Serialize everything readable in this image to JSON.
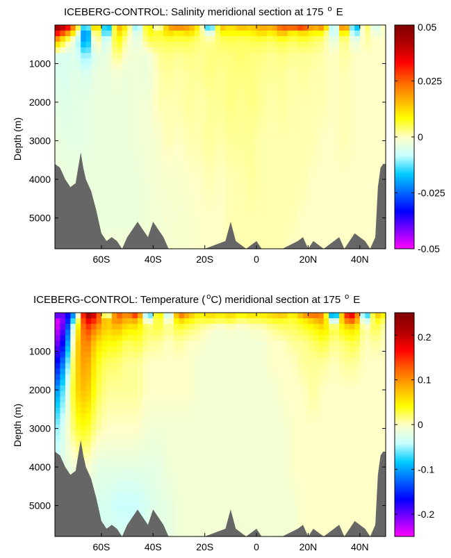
{
  "colors": {
    "land": "#666666",
    "colormap": [
      "#ff00ff",
      "#8000ff",
      "#0000ff",
      "#0066ff",
      "#00ccff",
      "#c8ffff",
      "#ffffc8",
      "#ffff00",
      "#ffb000",
      "#ff6000",
      "#ff0000",
      "#b00000",
      "#800000"
    ]
  },
  "chart_data": [
    {
      "type": "heatmap",
      "title": "ICEBERG-CONTROL: Salinity meridional section at 175",
      "title_sup": "o",
      "title_end": "E",
      "xlabel": "",
      "ylabel": "Depth (m)",
      "x_ticks": [
        "60S",
        "40S",
        "20S",
        "0",
        "20N",
        "40N"
      ],
      "x_tick_values": [
        -60,
        -40,
        -20,
        0,
        20,
        40
      ],
      "y_ticks": [
        "1000",
        "2000",
        "3000",
        "4000",
        "5000"
      ],
      "y_tick_values": [
        1000,
        2000,
        3000,
        4000,
        5000
      ],
      "xlim": [
        -78,
        50
      ],
      "ylim": [
        5800,
        0
      ],
      "y_reversed": true,
      "colorbar": {
        "labels": [
          "0.05",
          "0.025",
          "0",
          "-0.025",
          "-0.05"
        ],
        "values": [
          0.05,
          0.025,
          0,
          -0.025,
          -0.05
        ],
        "range": [
          -0.05,
          0.05
        ]
      },
      "field": {
        "lat": [
          -78,
          -74,
          -70,
          -66,
          -62,
          -58,
          -54,
          -50,
          -46,
          -42,
          -38,
          -34,
          -30,
          -26,
          -22,
          -18,
          -14,
          -10,
          -6,
          -2,
          2,
          6,
          10,
          14,
          18,
          22,
          26,
          30,
          34,
          38,
          42,
          46,
          50
        ],
        "depth": [
          0,
          150,
          400,
          800,
          1300,
          2000,
          3000,
          4000,
          5000,
          5800
        ],
        "values": [
          [
            0.05,
            0.045,
            0.02,
            -0.02,
            0.03,
            -0.03,
            0.02,
            0.01,
            -0.02,
            0.015,
            -0.01,
            0.02,
            0.03,
            0.02,
            0.01,
            -0.03,
            0.02,
            0.01,
            0.02,
            0.015,
            0.02,
            0.02,
            0.03,
            0.035,
            0.04,
            0.02,
            0.03,
            -0.02,
            0.04,
            -0.03,
            0.01,
            -0.01,
            0.005
          ],
          [
            0.04,
            0.03,
            0.01,
            -0.03,
            0.015,
            -0.025,
            0.015,
            0.005,
            -0.01,
            0.01,
            0.005,
            0.015,
            0.01,
            0.015,
            0.005,
            -0.01,
            0.01,
            0.01,
            0.01,
            0.01,
            0.015,
            0.01,
            0.02,
            0.01,
            0.015,
            0.01,
            0.01,
            -0.015,
            0.02,
            -0.02,
            0.005,
            -0.005,
            0.0
          ],
          [
            0.02,
            0.005,
            -0.005,
            -0.025,
            0.005,
            -0.01,
            0.01,
            0.0,
            -0.005,
            0.005,
            0.005,
            0.005,
            0.005,
            0.005,
            0.003,
            0.002,
            0.004,
            0.005,
            0.004,
            0.005,
            0.005,
            0.004,
            0.006,
            0.004,
            0.006,
            0.004,
            0.003,
            -0.005,
            0.005,
            -0.005,
            0.002,
            0.0,
            0.0
          ],
          [
            -0.005,
            -0.006,
            -0.005,
            -0.012,
            -0.004,
            -0.004,
            0.004,
            -0.002,
            -0.002,
            -0.003,
            0.002,
            0.003,
            0.002,
            0.003,
            0.002,
            0.003,
            0.003,
            0.003,
            0.004,
            0.003,
            0.003,
            0.002,
            0.003,
            0.002,
            0.002,
            0.002,
            0.001,
            0.0,
            0.002,
            0.0,
            0.0,
            0.0,
            0.0
          ],
          [
            -0.005,
            -0.006,
            -0.004,
            -0.006,
            -0.003,
            -0.003,
            -0.002,
            -0.003,
            -0.002,
            -0.003,
            0.001,
            0.002,
            0.001,
            0.002,
            0.002,
            0.003,
            0.002,
            0.003,
            0.003,
            0.003,
            0.002,
            0.002,
            0.002,
            0.001,
            0.002,
            0.001,
            0.001,
            0.0,
            0.001,
            0.0,
            0.0,
            0.0,
            0.0
          ],
          [
            -0.004,
            -0.005,
            -0.004,
            -0.004,
            -0.003,
            -0.003,
            -0.003,
            -0.003,
            -0.002,
            -0.002,
            0.001,
            0.001,
            0.001,
            0.002,
            0.001,
            0.002,
            0.002,
            0.003,
            0.002,
            0.003,
            0.002,
            0.001,
            0.002,
            0.001,
            0.001,
            0.001,
            0.001,
            0.0,
            0.001,
            0.0,
            0.0,
            0.0,
            0.0
          ],
          [
            -0.003,
            -0.004,
            -0.004,
            -0.004,
            -0.003,
            -0.003,
            -0.003,
            -0.003,
            -0.002,
            -0.002,
            -0.001,
            0.001,
            0.0,
            0.001,
            0.001,
            0.002,
            0.001,
            0.002,
            0.002,
            0.002,
            0.001,
            0.001,
            0.001,
            0.001,
            0.001,
            0.001,
            0.0,
            0.0,
            0.001,
            0.0,
            0.0,
            0.0,
            0.0
          ],
          [
            -0.003,
            -0.003,
            -0.003,
            -0.003,
            -0.003,
            -0.003,
            -0.003,
            -0.003,
            -0.003,
            -0.002,
            -0.001,
            -0.001,
            -0.001,
            0.0,
            0.0,
            0.001,
            0.0,
            0.001,
            0.001,
            0.002,
            0.001,
            0.001,
            0.001,
            0.001,
            0.001,
            0.0,
            0.0,
            0.0,
            0.0,
            0.0,
            0.0,
            0.0,
            0.0
          ],
          [
            -0.002,
            -0.002,
            -0.003,
            -0.003,
            -0.003,
            -0.003,
            -0.003,
            -0.003,
            -0.003,
            -0.002,
            -0.002,
            -0.001,
            -0.001,
            -0.001,
            0.0,
            0.0,
            0.0,
            0.001,
            0.001,
            0.001,
            0.001,
            0.001,
            0.001,
            0.001,
            0.0,
            0.0,
            0.0,
            0.0,
            0.0,
            0.0,
            0.0,
            0.0,
            0.0
          ],
          [
            -0.002,
            -0.002,
            -0.002,
            -0.002,
            -0.002,
            -0.002,
            -0.002,
            -0.002,
            -0.002,
            -0.002,
            -0.002,
            -0.001,
            -0.001,
            -0.001,
            0.0,
            0.0,
            0.0,
            0.001,
            0.001,
            0.001,
            0.001,
            0.001,
            0.001,
            0.0,
            0.0,
            0.0,
            0.0,
            0.0,
            0.0,
            0.0,
            0.0,
            0.0,
            0.0
          ]
        ]
      },
      "bathymetry": {
        "lat": [
          -78,
          -76,
          -74,
          -72,
          -70,
          -69,
          -68,
          -67,
          -66,
          -64,
          -62,
          -60,
          -58,
          -56,
          -54,
          -52,
          -50,
          -48,
          -46,
          -44,
          -42,
          -40,
          -38,
          -36,
          -34,
          -30,
          -20,
          -12,
          -10,
          -8,
          -4,
          0,
          2,
          6,
          10,
          16,
          18,
          20,
          22,
          26,
          30,
          32,
          34,
          38,
          42,
          44,
          46,
          47,
          48,
          49,
          50
        ],
        "depth": [
          3600,
          3700,
          4000,
          4200,
          4100,
          3700,
          3300,
          3700,
          4000,
          4300,
          4800,
          5400,
          5600,
          5500,
          5600,
          5800,
          5500,
          5300,
          5100,
          5300,
          5500,
          5100,
          5300,
          5500,
          5800,
          5800,
          5800,
          5600,
          5100,
          5600,
          5800,
          5600,
          5800,
          5800,
          5800,
          5600,
          5500,
          5800,
          5600,
          5800,
          5600,
          5500,
          5800,
          5400,
          5600,
          5800,
          5500,
          4200,
          3700,
          3600,
          3600
        ]
      }
    },
    {
      "type": "heatmap",
      "title": "ICEBERG-CONTROL: Temperature (",
      "title_sup_mid": "o",
      "title_mid": "C) meridional section at 175",
      "title_sup": "o",
      "title_end": "E",
      "xlabel": "",
      "ylabel": "Depth (m)",
      "x_ticks": [
        "60S",
        "40S",
        "20S",
        "0",
        "20N",
        "40N"
      ],
      "x_tick_values": [
        -60,
        -40,
        -20,
        0,
        20,
        40
      ],
      "y_ticks": [
        "1000",
        "2000",
        "3000",
        "4000",
        "5000"
      ],
      "y_tick_values": [
        1000,
        2000,
        3000,
        4000,
        5000
      ],
      "xlim": [
        -78,
        50
      ],
      "ylim": [
        5800,
        0
      ],
      "y_reversed": true,
      "colorbar": {
        "labels": [
          "0.2",
          "0.1",
          "0",
          "-0.1",
          "-0.2"
        ],
        "values": [
          0.2,
          0.1,
          0,
          -0.1,
          -0.2
        ],
        "range": [
          -0.25,
          0.25
        ]
      },
      "field": {
        "lat": [
          -78,
          -74,
          -70,
          -66,
          -62,
          -58,
          -54,
          -50,
          -46,
          -42,
          -38,
          -34,
          -30,
          -26,
          -22,
          -18,
          -14,
          -10,
          -6,
          -2,
          2,
          6,
          10,
          14,
          18,
          22,
          26,
          30,
          34,
          38,
          42,
          46,
          50
        ],
        "depth": [
          0,
          150,
          400,
          800,
          1300,
          2000,
          3000,
          4000,
          5000,
          5800
        ],
        "values": [
          [
            -0.15,
            -0.2,
            -0.1,
            0.25,
            0.2,
            -0.1,
            0.15,
            0.1,
            0.2,
            -0.15,
            0.1,
            -0.1,
            0.15,
            0.1,
            0.05,
            0.08,
            0.06,
            0.08,
            0.05,
            0.08,
            0.06,
            0.08,
            0.1,
            0.05,
            0.12,
            0.15,
            0.1,
            -0.2,
            0.15,
            0.2,
            -0.15,
            0.1,
            0.05
          ],
          [
            -0.25,
            -0.2,
            -0.05,
            0.2,
            0.15,
            0.05,
            0.12,
            0.08,
            0.1,
            -0.05,
            0.05,
            -0.03,
            0.08,
            0.05,
            0.03,
            0.04,
            0.03,
            0.04,
            0.02,
            0.03,
            0.03,
            0.04,
            0.04,
            0.03,
            0.05,
            0.08,
            0.1,
            -0.1,
            0.12,
            0.15,
            -0.08,
            0.05,
            0.02
          ],
          [
            -0.25,
            -0.18,
            0.02,
            0.15,
            0.1,
            0.06,
            0.08,
            0.05,
            0.05,
            0.02,
            0.03,
            0.01,
            0.03,
            0.02,
            0.01,
            0.0,
            -0.01,
            0.0,
            -0.01,
            0.0,
            0.0,
            0.01,
            0.02,
            0.02,
            0.03,
            0.04,
            0.06,
            0.02,
            0.05,
            0.06,
            0.0,
            0.03,
            0.0
          ],
          [
            -0.22,
            -0.15,
            0.05,
            0.12,
            0.06,
            0.04,
            0.04,
            0.02,
            0.03,
            0.01,
            0.01,
            0.0,
            0.01,
            0.0,
            0.0,
            -0.01,
            -0.01,
            -0.01,
            -0.01,
            -0.01,
            -0.01,
            0.0,
            0.0,
            0.01,
            0.01,
            0.02,
            0.03,
            0.01,
            0.02,
            0.03,
            0.0,
            0.01,
            0.0
          ],
          [
            -0.18,
            -0.1,
            0.06,
            0.1,
            0.04,
            0.02,
            0.02,
            0.01,
            0.01,
            0.0,
            0.0,
            0.0,
            0.0,
            0.0,
            -0.01,
            -0.01,
            -0.01,
            -0.01,
            -0.01,
            -0.01,
            -0.01,
            0.0,
            0.0,
            0.0,
            0.01,
            0.01,
            0.01,
            0.0,
            0.01,
            0.01,
            0.0,
            0.0,
            0.0
          ],
          [
            -0.12,
            -0.05,
            0.06,
            0.08,
            0.03,
            0.01,
            0.01,
            0.01,
            0.01,
            0.0,
            0.0,
            0.0,
            0.0,
            0.0,
            -0.01,
            -0.01,
            -0.01,
            -0.01,
            -0.01,
            -0.01,
            -0.01,
            -0.01,
            0.0,
            0.0,
            0.0,
            0.01,
            0.0,
            0.0,
            0.0,
            0.0,
            0.0,
            0.0,
            0.0
          ],
          [
            -0.06,
            -0.02,
            0.03,
            0.04,
            0.01,
            0.0,
            0.0,
            0.0,
            0.0,
            -0.01,
            -0.01,
            -0.01,
            -0.01,
            -0.01,
            -0.01,
            -0.01,
            -0.01,
            -0.01,
            -0.01,
            -0.01,
            -0.01,
            -0.01,
            -0.01,
            0.0,
            0.0,
            0.0,
            0.0,
            0.0,
            0.0,
            0.0,
            0.0,
            0.0,
            0.0
          ],
          [
            -0.03,
            -0.02,
            -0.01,
            0.0,
            -0.02,
            -0.02,
            -0.02,
            -0.02,
            -0.02,
            -0.02,
            -0.02,
            -0.01,
            -0.01,
            -0.01,
            -0.01,
            -0.01,
            -0.01,
            -0.01,
            -0.01,
            -0.01,
            -0.01,
            -0.01,
            -0.01,
            0.0,
            0.0,
            0.0,
            0.0,
            0.0,
            0.0,
            0.0,
            0.0,
            0.0,
            0.0
          ],
          [
            -0.02,
            -0.02,
            -0.02,
            -0.02,
            -0.03,
            -0.03,
            -0.04,
            -0.04,
            -0.04,
            -0.03,
            -0.02,
            -0.02,
            -0.01,
            -0.01,
            -0.01,
            -0.01,
            -0.01,
            -0.01,
            -0.01,
            -0.01,
            -0.01,
            -0.01,
            -0.01,
            -0.01,
            0.0,
            0.0,
            0.0,
            0.0,
            0.0,
            0.0,
            0.0,
            0.0,
            0.0
          ],
          [
            -0.02,
            -0.02,
            -0.02,
            -0.02,
            -0.03,
            -0.03,
            -0.03,
            -0.03,
            -0.03,
            -0.02,
            -0.02,
            -0.02,
            -0.01,
            -0.01,
            -0.01,
            -0.01,
            -0.01,
            -0.01,
            -0.01,
            -0.01,
            -0.01,
            -0.01,
            -0.01,
            -0.01,
            0.0,
            0.0,
            0.0,
            0.0,
            0.0,
            0.0,
            0.0,
            0.0,
            0.0
          ]
        ]
      },
      "bathymetry": {
        "lat": [
          -78,
          -76,
          -74,
          -72,
          -70,
          -69,
          -68,
          -67,
          -66,
          -64,
          -62,
          -60,
          -58,
          -56,
          -54,
          -52,
          -50,
          -48,
          -46,
          -44,
          -42,
          -40,
          -38,
          -36,
          -34,
          -30,
          -20,
          -12,
          -10,
          -8,
          -4,
          0,
          2,
          6,
          10,
          16,
          18,
          20,
          22,
          26,
          30,
          32,
          34,
          38,
          42,
          44,
          46,
          47,
          48,
          49,
          50
        ],
        "depth": [
          3600,
          3700,
          4000,
          4200,
          4100,
          3700,
          3300,
          3700,
          4000,
          4300,
          4800,
          5400,
          5600,
          5500,
          5600,
          5800,
          5500,
          5300,
          5100,
          5300,
          5500,
          5100,
          5300,
          5500,
          5800,
          5800,
          5800,
          5600,
          5100,
          5600,
          5800,
          5600,
          5800,
          5800,
          5800,
          5600,
          5500,
          5800,
          5600,
          5800,
          5600,
          5500,
          5800,
          5400,
          5600,
          5800,
          5500,
          4200,
          3700,
          3600,
          3600
        ]
      }
    }
  ]
}
